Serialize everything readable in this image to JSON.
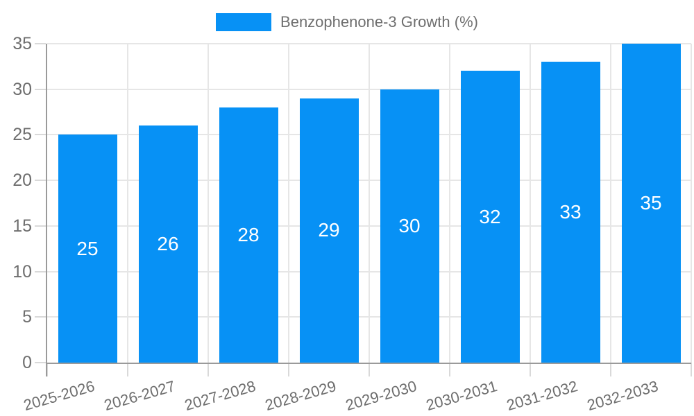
{
  "chart_data": {
    "type": "bar",
    "title": "",
    "legend_label": "Benzophenone-3 Growth (%)",
    "legend_position": "top",
    "categories": [
      "2025-2026",
      "2026-2027",
      "2027-2028",
      "2028-2029",
      "2029-2030",
      "2030-2031",
      "2031-2032",
      "2032-2033"
    ],
    "series": [
      {
        "name": "Benzophenone-3 Growth (%)",
        "values": [
          25,
          26,
          28,
          29,
          30,
          32,
          33,
          35
        ]
      }
    ],
    "xlabel": "",
    "ylabel": "",
    "ylim": [
      0,
      35
    ],
    "yticks": [
      0,
      5,
      10,
      15,
      20,
      25,
      30,
      35
    ],
    "grid": true,
    "colors": {
      "bar": "#0791f5",
      "bar_label": "#ffffff",
      "axis_text": "#6e6e6e",
      "grid": "#e6e6e6",
      "tick": "#d9d9d9",
      "axis_line": "#9a9a9a",
      "background": "#ffffff"
    }
  }
}
